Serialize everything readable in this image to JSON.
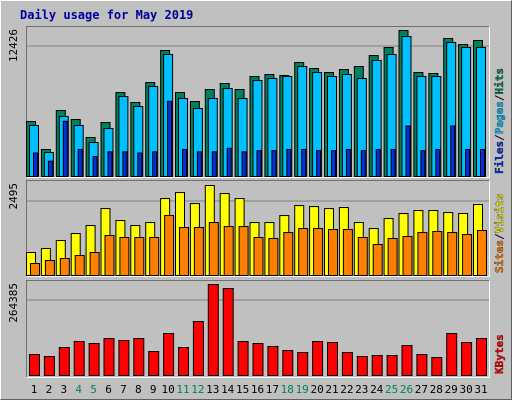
{
  "title": "Daily usage for May 2019",
  "legend_separator": "/",
  "chart_data": [
    {
      "type": "bar",
      "ylim": [
        0,
        12426
      ],
      "yticks": [
        12426
      ],
      "grid": true,
      "series": [
        {
          "name": "Hits",
          "color": "#00805c",
          "values": [
            4681,
            2298,
            5617,
            4851,
            3319,
            4595,
            7148,
            6297,
            7999,
            10723,
            7148,
            6383,
            7404,
            7914,
            7404,
            8510,
            8680,
            8595,
            9701,
            9191,
            8850,
            9106,
            9361,
            10297,
            10978,
            12426,
            8850,
            8765,
            11744,
            11233,
            11574
          ]
        },
        {
          "name": "Pages",
          "color": "#00c0ff",
          "values": [
            4340,
            2042,
            5106,
            4340,
            2893,
            4085,
            6808,
            5957,
            7659,
            10382,
            6638,
            5787,
            6638,
            7489,
            6638,
            8170,
            8340,
            8510,
            9361,
            8850,
            8510,
            8680,
            8340,
            9872,
            10382,
            11914,
            8510,
            8510,
            11403,
            10978,
            10978
          ]
        },
        {
          "name": "Files",
          "color": "#0030e0",
          "values": [
            2000,
            1300,
            4700,
            2300,
            1700,
            2100,
            2100,
            2000,
            2100,
            6400,
            2300,
            2100,
            2100,
            2400,
            2100,
            2200,
            2200,
            2300,
            2300,
            2200,
            2200,
            2300,
            2200,
            2300,
            2300,
            4300,
            2200,
            2300,
            4300,
            2300,
            2300
          ]
        }
      ]
    },
    {
      "type": "bar",
      "ylim": [
        0,
        2495
      ],
      "yticks": [
        2495
      ],
      "grid": true,
      "series": [
        {
          "name": "Visits",
          "color": "#ffff00",
          "values": [
            637,
            748,
            970,
            1164,
            1385,
            1856,
            1524,
            1385,
            1468,
            2133,
            2299,
            1994,
            2495,
            2272,
            2133,
            1468,
            1468,
            1662,
            1939,
            1911,
            1856,
            1884,
            1468,
            1302,
            1579,
            1718,
            1801,
            1801,
            1745,
            1718,
            1967
          ]
        },
        {
          "name": "Sites",
          "color": "#ff8000",
          "values": [
            332,
            416,
            471,
            554,
            637,
            1108,
            1053,
            1053,
            1053,
            1662,
            1330,
            1330,
            1468,
            1357,
            1357,
            1053,
            1025,
            1191,
            1302,
            1302,
            1274,
            1274,
            1053,
            859,
            1025,
            1080,
            1191,
            1219,
            1191,
            1136,
            1247
          ]
        }
      ]
    },
    {
      "type": "bar",
      "ylim": [
        0,
        264385
      ],
      "yticks": [
        264385
      ],
      "grid": true,
      "categories": [
        "1",
        "2",
        "3",
        "4",
        "5",
        "6",
        "7",
        "8",
        "9",
        "10",
        "11",
        "12",
        "13",
        "14",
        "15",
        "16",
        "17",
        "18",
        "19",
        "20",
        "21",
        "22",
        "23",
        "24",
        "25",
        "26",
        "27",
        "28",
        "29",
        "30",
        "31"
      ],
      "category_colors": [
        "#000000",
        "#000000",
        "#000000",
        "#00805c",
        "#00805c",
        "#000000",
        "#000000",
        "#000000",
        "#000000",
        "#000000",
        "#00805c",
        "#00805c",
        "#000000",
        "#000000",
        "#000000",
        "#000000",
        "#000000",
        "#00805c",
        "#00805c",
        "#000000",
        "#000000",
        "#000000",
        "#000000",
        "#000000",
        "#00805c",
        "#00805c",
        "#000000",
        "#000000",
        "#000000",
        "#000000",
        "#000000"
      ],
      "series": [
        {
          "name": "KBytes",
          "color": "#ff0000",
          "values": [
            61005,
            55195,
            81340,
            98770,
            92960,
            107485,
            101675,
            107485,
            69720,
            122010,
            81340,
            156870,
            264385,
            252735,
            98770,
            92960,
            84245,
            72625,
            66815,
            98770,
            95865,
            66815,
            55195,
            58100,
            58100,
            87150,
            61005,
            52290,
            122010,
            95865,
            107485
          ]
        }
      ]
    }
  ]
}
